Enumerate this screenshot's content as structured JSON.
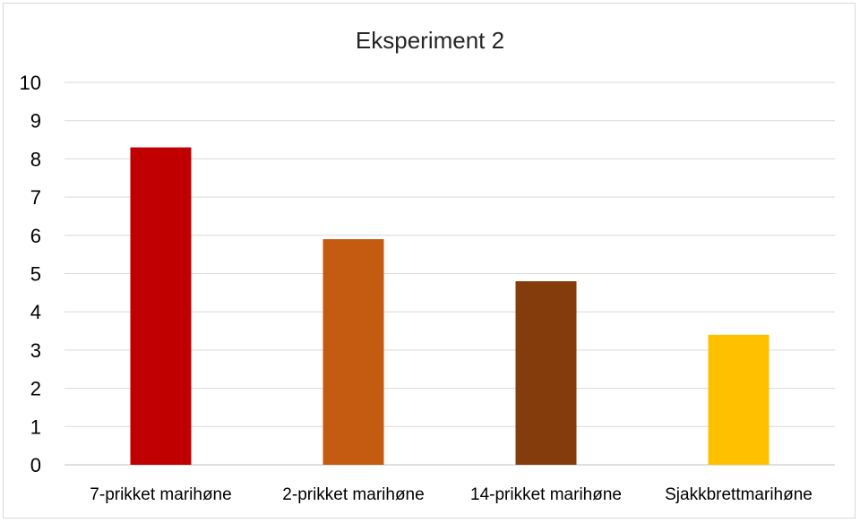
{
  "chart_data": {
    "type": "bar",
    "title": "Eksperiment 2",
    "xlabel": "",
    "ylabel": "",
    "ylim": [
      0,
      10
    ],
    "yticks": [
      0,
      1,
      2,
      3,
      4,
      5,
      6,
      7,
      8,
      9,
      10
    ],
    "grid": true,
    "legend": "none",
    "categories": [
      "7-prikket marihøne",
      "2-prikket marihøne",
      "14-prikket marihøne",
      "Sjakkbrettmarihøne"
    ],
    "values": [
      8.3,
      5.9,
      4.8,
      3.4
    ],
    "colors": [
      "#c00000",
      "#c55a11",
      "#843c0c",
      "#ffc000"
    ]
  }
}
